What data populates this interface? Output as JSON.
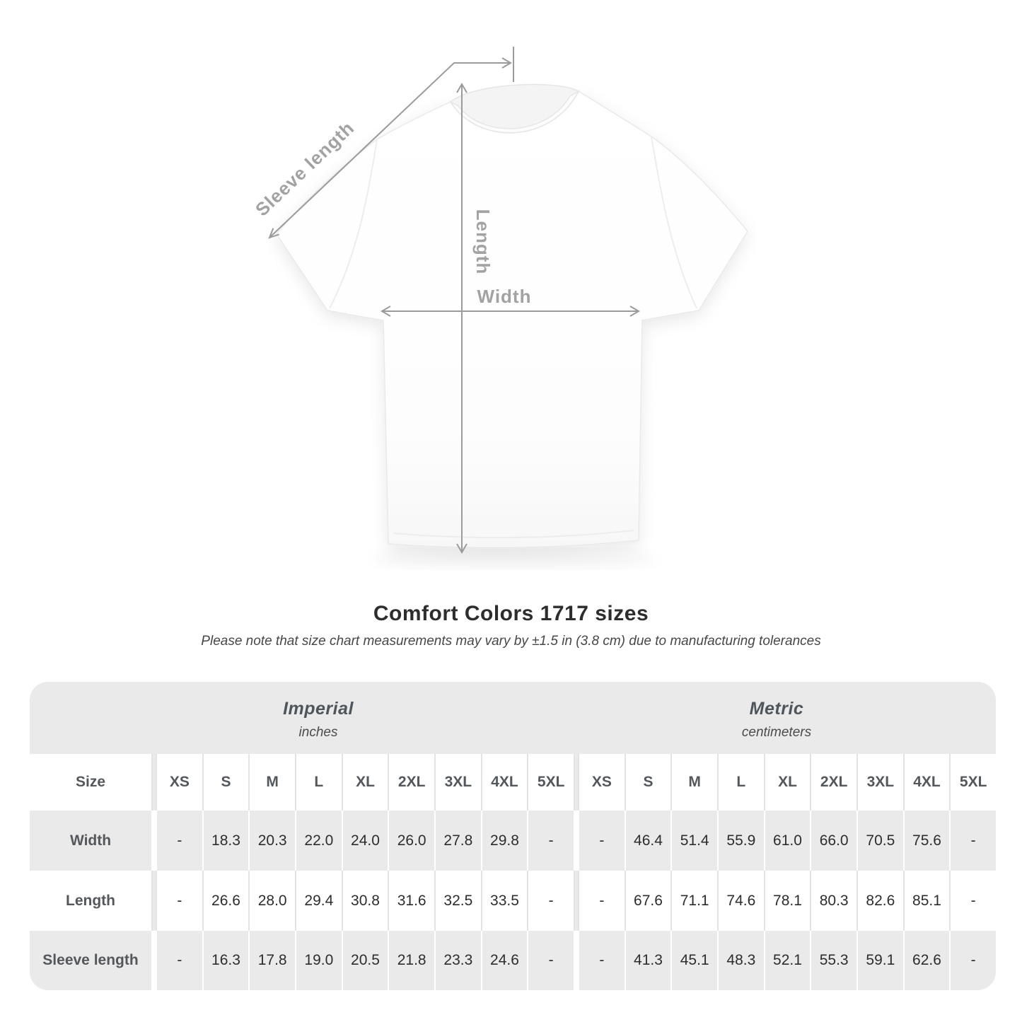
{
  "diagram": {
    "sleeve_label": "Sleeve length",
    "length_label": "Length",
    "width_label": "Width"
  },
  "title": "Comfort Colors 1717 sizes",
  "subtitle": "Please note that size chart measurements may vary by ±1.5 in (3.8 cm) due to manufacturing tolerances",
  "table": {
    "size_header": "Size",
    "unit_groups": [
      {
        "name": "Imperial",
        "unit": "inches"
      },
      {
        "name": "Metric",
        "unit": "centimeters"
      }
    ],
    "sizes": [
      "XS",
      "S",
      "M",
      "L",
      "XL",
      "2XL",
      "3XL",
      "4XL",
      "5XL"
    ],
    "rows": [
      {
        "label": "Width",
        "imperial": [
          "-",
          "18.3",
          "20.3",
          "22.0",
          "24.0",
          "26.0",
          "27.8",
          "29.8",
          "-"
        ],
        "metric": [
          "-",
          "46.4",
          "51.4",
          "55.9",
          "61.0",
          "66.0",
          "70.5",
          "75.6",
          "-"
        ]
      },
      {
        "label": "Length",
        "imperial": [
          "-",
          "26.6",
          "28.0",
          "29.4",
          "30.8",
          "31.6",
          "32.5",
          "33.5",
          "-"
        ],
        "metric": [
          "-",
          "67.6",
          "71.1",
          "74.6",
          "78.1",
          "80.3",
          "82.6",
          "85.1",
          "-"
        ]
      },
      {
        "label": "Sleeve length",
        "imperial": [
          "-",
          "16.3",
          "17.8",
          "19.0",
          "20.5",
          "21.8",
          "23.3",
          "24.6",
          "-"
        ],
        "metric": [
          "-",
          "41.3",
          "45.1",
          "48.3",
          "52.1",
          "55.3",
          "59.1",
          "62.6",
          "-"
        ]
      }
    ]
  },
  "colors": {
    "row_band_gray": "#eaeaea",
    "measure_line_gray": "#9b9b9b",
    "measure_label_gray": "#a2a2a2",
    "value_text": "#2d2d2d",
    "header_text": "#54585c"
  }
}
